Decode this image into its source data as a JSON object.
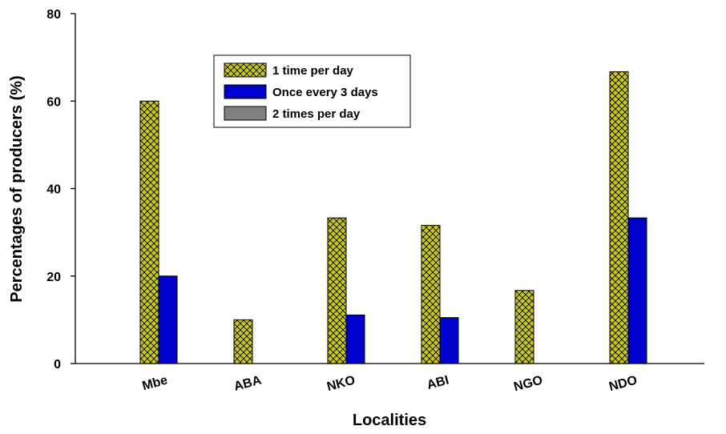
{
  "chart_data": {
    "type": "bar",
    "title": "",
    "xlabel": "Localities",
    "ylabel": "Percentages of producers (%)",
    "categories": [
      "Mbe",
      "ABA",
      "NKO",
      "ABI",
      "NGO",
      "NDO"
    ],
    "ylim": [
      0,
      80
    ],
    "yticks": [
      0,
      20,
      40,
      60,
      80
    ],
    "grid": false,
    "legend_position": "top-center",
    "series": [
      {
        "name": "1 time per day",
        "values": [
          60,
          10,
          33.3,
          31.6,
          16.7,
          66.7
        ],
        "color": "#c8c820",
        "pattern": "crosshatch"
      },
      {
        "name": "Once every 3 days",
        "values": [
          20,
          0,
          11.1,
          10.5,
          0,
          33.3
        ],
        "color": "#0000cc",
        "pattern": "solid"
      },
      {
        "name": "2 times per day",
        "values": [
          0,
          0,
          0,
          0,
          0,
          0
        ],
        "color": "#808080",
        "pattern": "solid"
      }
    ]
  }
}
